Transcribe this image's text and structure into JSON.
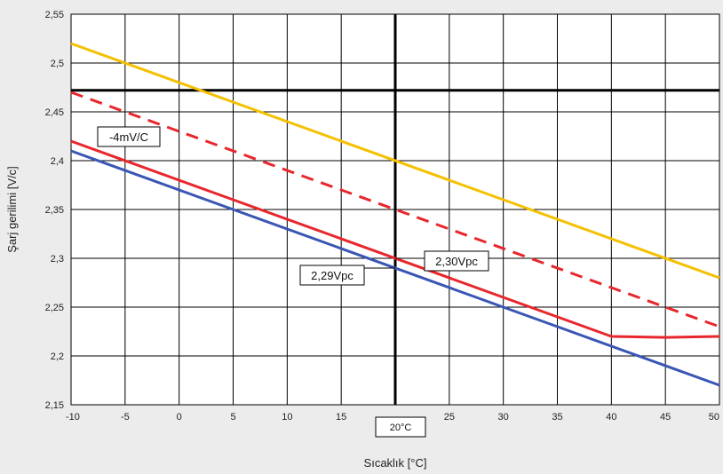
{
  "chart_data": {
    "type": "line",
    "xlabel": "Sıcaklık [°C]",
    "ylabel": "Şarj gerilimi [V/c]",
    "xlim": [
      -10,
      50
    ],
    "ylim": [
      2.15,
      2.55
    ],
    "x_ticks": [
      -10,
      -5,
      0,
      5,
      10,
      15,
      20,
      25,
      30,
      35,
      40,
      45,
      50
    ],
    "y_ticks": [
      2.15,
      2.2,
      2.25,
      2.3,
      2.35,
      2.4,
      2.45,
      2.5,
      2.55
    ],
    "y_tick_labels": [
      "2,15",
      "2,2",
      "2,25",
      "2,3",
      "2,35",
      "2,4",
      "2,45",
      "2,5",
      "2,55"
    ],
    "grid": true,
    "reference_lines": {
      "x": 20,
      "y": 2.472
    },
    "series": [
      {
        "color": "#f5c000",
        "style": "solid",
        "x": [
          -10,
          50
        ],
        "y": [
          2.52,
          2.28
        ]
      },
      {
        "color": "#e8272d",
        "style": "dashed",
        "x": [
          -10,
          50
        ],
        "y": [
          2.47,
          2.23
        ]
      },
      {
        "color": "#e8272d",
        "style": "solid",
        "x": [
          -10,
          40,
          45,
          50
        ],
        "y": [
          2.42,
          2.22,
          2.219,
          2.22
        ]
      },
      {
        "color": "#3a56b4",
        "style": "solid",
        "x": [
          -10,
          50
        ],
        "y": [
          2.41,
          2.17
        ]
      }
    ],
    "annotations": [
      {
        "text": "-4mV/C",
        "x": -7,
        "y": 2.43
      },
      {
        "text": "2,30Vpc",
        "x": 26,
        "y": 2.3
      },
      {
        "text": "2,29Vpc",
        "x": 13.5,
        "y": 2.29
      }
    ],
    "x_marker_label": "20°C"
  }
}
